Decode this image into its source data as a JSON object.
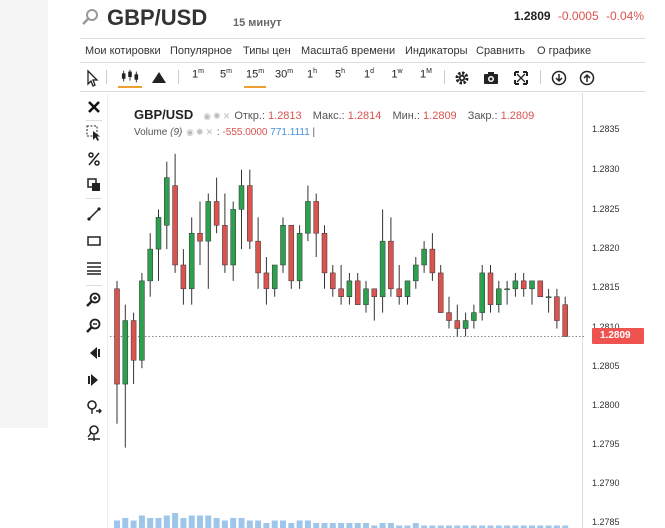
{
  "header": {
    "title": "GBP/USD",
    "interval": "15 минут",
    "price": "1.2809",
    "change": "-0.0005",
    "change_pct": "-0.04%"
  },
  "menu": [
    "Мои котировки",
    "Популярное",
    "Типы цен",
    "Масштаб времени",
    "Индикаторы",
    "Сравнить",
    "О графике"
  ],
  "toolbar": {
    "timeframes": [
      {
        "num": "1",
        "sup": "m"
      },
      {
        "num": "5",
        "sup": "m"
      },
      {
        "num": "15",
        "sup": "m"
      },
      {
        "num": "30",
        "sup": "m"
      },
      {
        "num": "1",
        "sup": "h"
      },
      {
        "num": "5",
        "sup": "h"
      },
      {
        "num": "1",
        "sup": "d"
      },
      {
        "num": "1",
        "sup": "w"
      },
      {
        "num": "1",
        "sup": "M"
      }
    ],
    "active_timeframe": "15m"
  },
  "legend": {
    "symbol": "GBP/USD",
    "open_label": "Откр.:",
    "open": "1.2813",
    "high_label": "Макс.:",
    "high": "1.2814",
    "low_label": "Мин.:",
    "low": "1.2809",
    "close_label": "Закр.:",
    "close": "1.2809",
    "volume_label": "Volume",
    "volume_period": "(9)",
    "volume_val1": "-555.0000",
    "volume_val2": "771.1111"
  },
  "yaxis": {
    "ticks": [
      "1.2835",
      "1.2830",
      "1.2825",
      "1.2820",
      "1.2815",
      "1.2810",
      "1.2805",
      "1.2800",
      "1.2795",
      "1.2790",
      "1.2785"
    ],
    "current_price": "1.2809"
  },
  "colors": {
    "up": "#2e9e4f",
    "down": "#d9534f",
    "accent": "#f0a030",
    "price_tag": "#ef5350"
  },
  "chart_data": {
    "type": "candlestick",
    "ylim": [
      1.2785,
      1.2837
    ],
    "ohlc": [
      [
        1.2815,
        1.2816,
        1.2798,
        1.2803
      ],
      [
        1.2803,
        1.2813,
        1.2795,
        1.2811
      ],
      [
        1.2811,
        1.2812,
        1.2803,
        1.2806
      ],
      [
        1.2806,
        1.2817,
        1.2805,
        1.2816
      ],
      [
        1.2816,
        1.2822,
        1.2814,
        1.282
      ],
      [
        1.282,
        1.2825,
        1.2816,
        1.2824
      ],
      [
        1.2823,
        1.2831,
        1.282,
        1.2829
      ],
      [
        1.2828,
        1.2832,
        1.2817,
        1.2818
      ],
      [
        1.2818,
        1.282,
        1.2813,
        1.2815
      ],
      [
        1.2815,
        1.2824,
        1.2813,
        1.2822
      ],
      [
        1.2822,
        1.2826,
        1.2818,
        1.2821
      ],
      [
        1.2821,
        1.2827,
        1.2815,
        1.2826
      ],
      [
        1.2826,
        1.2829,
        1.2822,
        1.2823
      ],
      [
        1.2823,
        1.2827,
        1.2817,
        1.2818
      ],
      [
        1.2818,
        1.2826,
        1.2816,
        1.2825
      ],
      [
        1.2825,
        1.283,
        1.282,
        1.2828
      ],
      [
        1.2828,
        1.283,
        1.282,
        1.2821
      ],
      [
        1.2821,
        1.2824,
        1.2815,
        1.2817
      ],
      [
        1.2817,
        1.2819,
        1.2813,
        1.2815
      ],
      [
        1.2815,
        1.2818,
        1.2814,
        1.2818
      ],
      [
        1.2818,
        1.2824,
        1.2817,
        1.2823
      ],
      [
        1.2823,
        1.2823,
        1.2815,
        1.2816
      ],
      [
        1.2816,
        1.2823,
        1.2815,
        1.2822
      ],
      [
        1.2822,
        1.2828,
        1.2821,
        1.2826
      ],
      [
        1.2826,
        1.2827,
        1.2819,
        1.2822
      ],
      [
        1.2822,
        1.2823,
        1.2815,
        1.2817
      ],
      [
        1.2817,
        1.2818,
        1.2814,
        1.2815
      ],
      [
        1.2815,
        1.2818,
        1.2813,
        1.2814
      ],
      [
        1.2814,
        1.2817,
        1.2813,
        1.2816
      ],
      [
        1.2816,
        1.2817,
        1.2813,
        1.2813
      ],
      [
        1.2813,
        1.2816,
        1.2812,
        1.2815
      ],
      [
        1.2815,
        1.2815,
        1.2811,
        1.2814
      ],
      [
        1.2814,
        1.2825,
        1.2812,
        1.2821
      ],
      [
        1.2821,
        1.2824,
        1.2814,
        1.2815
      ],
      [
        1.2815,
        1.2818,
        1.2813,
        1.2814
      ],
      [
        1.2814,
        1.2816,
        1.2813,
        1.2816
      ],
      [
        1.2816,
        1.2819,
        1.2815,
        1.2818
      ],
      [
        1.2818,
        1.2821,
        1.2817,
        1.282
      ],
      [
        1.282,
        1.2822,
        1.2816,
        1.2817
      ],
      [
        1.2817,
        1.2818,
        1.2812,
        1.2812
      ],
      [
        1.2812,
        1.2814,
        1.281,
        1.2811
      ],
      [
        1.2811,
        1.2813,
        1.2809,
        1.281
      ],
      [
        1.281,
        1.2812,
        1.2809,
        1.2811
      ],
      [
        1.2811,
        1.2813,
        1.281,
        1.2812
      ],
      [
        1.2812,
        1.2818,
        1.2811,
        1.2817
      ],
      [
        1.2817,
        1.2818,
        1.2812,
        1.2813
      ],
      [
        1.2813,
        1.2816,
        1.2812,
        1.2815
      ],
      [
        1.2815,
        1.2816,
        1.2813,
        1.2815
      ],
      [
        1.2815,
        1.2817,
        1.2814,
        1.2816
      ],
      [
        1.2816,
        1.2817,
        1.2814,
        1.2815
      ],
      [
        1.2815,
        1.2816,
        1.2813,
        1.2816
      ],
      [
        1.2816,
        1.2816,
        1.2814,
        1.2814
      ],
      [
        1.2814,
        1.2815,
        1.2812,
        1.2814
      ],
      [
        1.2814,
        1.2815,
        1.281,
        1.2811
      ],
      [
        1.2813,
        1.2814,
        1.2809,
        1.2809
      ]
    ],
    "volume": [
      3,
      4,
      3,
      5,
      4,
      4,
      5,
      6,
      4,
      5,
      5,
      5,
      4,
      3,
      4,
      4,
      3,
      3,
      2,
      3,
      3,
      2,
      3,
      3,
      2,
      2,
      2,
      2,
      2,
      2,
      2,
      1,
      2,
      2,
      1,
      1,
      2,
      1,
      1,
      1,
      1,
      1,
      1,
      1,
      1,
      1,
      1,
      1,
      1,
      1,
      1,
      1,
      1,
      1,
      1
    ]
  }
}
